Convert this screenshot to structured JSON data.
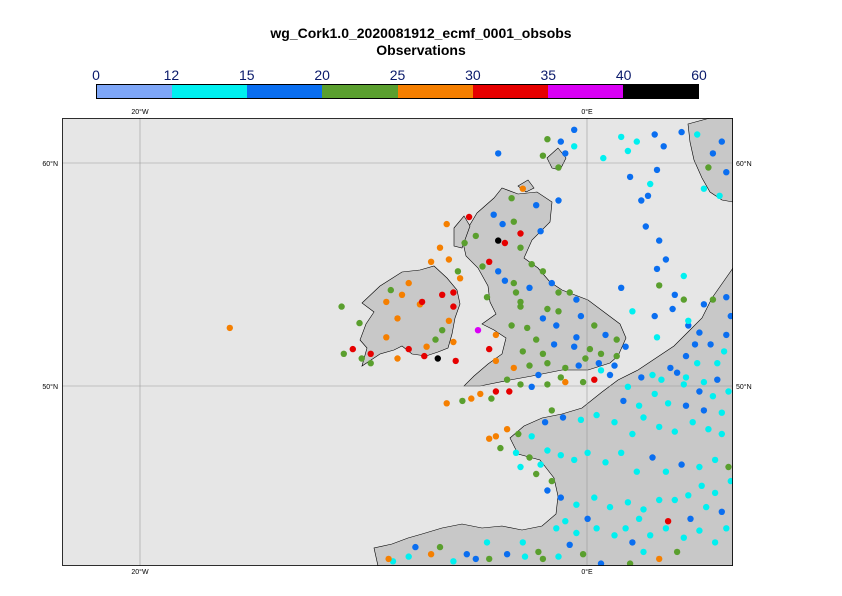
{
  "title": "wg_Cork1.0_2020081912_ecmf_0001_obsobs",
  "subtitle": "Observations",
  "legend": {
    "ticks": [
      "0",
      "12",
      "15",
      "20",
      "25",
      "30",
      "35",
      "40",
      "60"
    ],
    "colors": [
      "#7ea6f7",
      "#00f0f0",
      "#0a6ef0",
      "#5a9f2e",
      "#f57f00",
      "#e60000",
      "#d900f5",
      "#000000"
    ]
  },
  "axes": {
    "lon_labels": [
      "20°W",
      "0°E"
    ],
    "lat_labels": [
      "60°N",
      "50°N"
    ]
  },
  "map": {
    "ocean_color": "#e6e6e6",
    "land_color": "#c8c8c8",
    "lon_range": [
      -23.5,
      6.5
    ],
    "lat_range": [
      43.0,
      62.0
    ]
  },
  "chart_data": {
    "type": "scatter",
    "title": "wg_Cork1.0_2020081912_ecmf_0001_obsobs",
    "subtitle": "Observations",
    "x_axis": "longitude",
    "y_axis": "latitude",
    "xlim": [
      -23.5,
      6.5
    ],
    "ylim": [
      43.0,
      62.0
    ],
    "color_bins": [
      0,
      12,
      15,
      20,
      25,
      30,
      35,
      40,
      60
    ],
    "points": [
      [
        -16.0,
        53.1,
        28
      ],
      [
        -4.0,
        56.8,
        50
      ],
      [
        -6.7,
        51.8,
        50
      ],
      [
        -4.9,
        53.0,
        37
      ],
      [
        -11.0,
        54.0,
        22
      ],
      [
        -10.2,
        53.3,
        22
      ],
      [
        -10.5,
        52.2,
        32
      ],
      [
        -9.7,
        52.0,
        32
      ],
      [
        -8.5,
        53.5,
        28
      ],
      [
        -8.3,
        54.5,
        27
      ],
      [
        -9.0,
        54.2,
        27
      ],
      [
        -7.5,
        54.1,
        26
      ],
      [
        -7.4,
        54.2,
        32
      ],
      [
        -8.8,
        54.7,
        22
      ],
      [
        -8.0,
        55.0,
        26
      ],
      [
        -6.0,
        54.0,
        30
      ],
      [
        -6.5,
        53.0,
        24
      ],
      [
        -6.2,
        53.4,
        26
      ],
      [
        -6.8,
        52.6,
        23
      ],
      [
        -7.2,
        52.3,
        26
      ],
      [
        -8.5,
        51.8,
        26
      ],
      [
        -9.7,
        51.6,
        21
      ],
      [
        -10.1,
        51.8,
        22
      ],
      [
        -10.9,
        52.0,
        22
      ],
      [
        -9.0,
        52.7,
        27
      ],
      [
        -8.0,
        52.2,
        32
      ],
      [
        -7.3,
        51.9,
        31
      ],
      [
        -6.0,
        52.5,
        26
      ],
      [
        -5.9,
        51.7,
        34
      ],
      [
        -6.5,
        54.5,
        32
      ],
      [
        -6.0,
        54.6,
        34
      ],
      [
        -5.7,
        55.2,
        27
      ],
      [
        -6.2,
        56.0,
        26
      ],
      [
        -5.5,
        56.7,
        22
      ],
      [
        -5.0,
        57.0,
        23
      ],
      [
        -5.3,
        57.8,
        33
      ],
      [
        -6.3,
        57.5,
        28
      ],
      [
        -6.6,
        56.5,
        28
      ],
      [
        -7.0,
        55.9,
        27
      ],
      [
        -5.8,
        55.5,
        21
      ],
      [
        -4.4,
        55.9,
        32
      ],
      [
        -3.7,
        56.7,
        33
      ],
      [
        -3.0,
        56.5,
        21
      ],
      [
        -2.1,
        57.2,
        17
      ],
      [
        -3.3,
        57.6,
        21
      ],
      [
        -4.2,
        57.9,
        17
      ],
      [
        -3.4,
        58.6,
        21
      ],
      [
        -2.9,
        59.0,
        26
      ],
      [
        -1.3,
        59.9,
        22
      ],
      [
        -2.0,
        60.4,
        23
      ],
      [
        -1.2,
        61.0,
        15
      ],
      [
        -4.0,
        60.5,
        17
      ],
      [
        -2.3,
        58.3,
        17
      ],
      [
        -3.0,
        57.1,
        31
      ],
      [
        -2.5,
        55.8,
        22
      ],
      [
        -2.0,
        55.5,
        20
      ],
      [
        -1.6,
        55.0,
        17
      ],
      [
        -1.3,
        54.6,
        20
      ],
      [
        -0.5,
        54.3,
        17
      ],
      [
        -3.0,
        54.0,
        23
      ],
      [
        -2.6,
        54.8,
        17
      ],
      [
        -3.2,
        54.6,
        23
      ],
      [
        -4.5,
        54.4,
        22
      ],
      [
        -3.0,
        54.2,
        20
      ],
      [
        -2.0,
        53.5,
        17
      ],
      [
        -1.3,
        53.8,
        20
      ],
      [
        -0.3,
        53.6,
        17
      ],
      [
        0.3,
        53.2,
        21
      ],
      [
        0.8,
        52.8,
        17
      ],
      [
        1.3,
        52.6,
        22
      ],
      [
        1.7,
        52.3,
        17
      ],
      [
        1.3,
        51.9,
        21
      ],
      [
        0.5,
        51.6,
        17
      ],
      [
        -0.4,
        51.5,
        17
      ],
      [
        -1.0,
        51.4,
        20
      ],
      [
        -1.8,
        51.6,
        22
      ],
      [
        -2.6,
        51.5,
        22
      ],
      [
        -3.3,
        51.4,
        27
      ],
      [
        -4.1,
        51.7,
        28
      ],
      [
        -4.4,
        52.2,
        32
      ],
      [
        -4.1,
        52.8,
        29
      ],
      [
        -3.4,
        53.2,
        21
      ],
      [
        -2.7,
        53.1,
        22
      ],
      [
        -2.3,
        52.6,
        22
      ],
      [
        -1.5,
        52.4,
        17
      ],
      [
        -0.6,
        52.3,
        17
      ],
      [
        0.1,
        52.2,
        20
      ],
      [
        -0.1,
        51.8,
        21
      ],
      [
        -1.0,
        50.8,
        26
      ],
      [
        -0.2,
        50.8,
        20
      ],
      [
        0.3,
        50.9,
        31
      ],
      [
        1.0,
        51.1,
        17
      ],
      [
        -1.8,
        50.7,
        20
      ],
      [
        -2.5,
        50.6,
        17
      ],
      [
        -3.0,
        50.7,
        22
      ],
      [
        -3.5,
        50.4,
        31
      ],
      [
        -4.1,
        50.4,
        31
      ],
      [
        -4.8,
        50.3,
        28
      ],
      [
        -5.2,
        50.1,
        27
      ],
      [
        -5.6,
        50.0,
        22
      ],
      [
        -6.3,
        49.9,
        28
      ],
      [
        -4.3,
        50.1,
        22
      ],
      [
        -3.6,
        50.9,
        22
      ],
      [
        -2.2,
        51.1,
        17
      ],
      [
        -1.2,
        51.0,
        20
      ],
      [
        -0.5,
        52.7,
        17
      ],
      [
        -1.4,
        53.2,
        17
      ],
      [
        -2.0,
        52.0,
        21
      ],
      [
        -2.9,
        52.1,
        21
      ],
      [
        -1.8,
        53.9,
        22
      ],
      [
        -0.8,
        54.6,
        20
      ],
      [
        -4.0,
        55.5,
        17
      ],
      [
        -3.3,
        55.0,
        21
      ],
      [
        -4.7,
        55.7,
        20
      ],
      [
        -3.7,
        55.1,
        17
      ],
      [
        -1.8,
        61.1,
        23
      ],
      [
        -1.0,
        60.5,
        17
      ],
      [
        -0.6,
        60.8,
        13
      ],
      [
        1.5,
        61.2,
        13
      ],
      [
        2.2,
        61.0,
        13
      ],
      [
        3.0,
        61.3,
        15
      ],
      [
        3.4,
        60.8,
        16
      ],
      [
        4.2,
        61.4,
        17
      ],
      [
        4.9,
        61.3,
        13
      ],
      [
        5.6,
        60.5,
        16
      ],
      [
        6.0,
        61.0,
        18
      ],
      [
        5.4,
        59.9,
        22
      ],
      [
        6.2,
        59.7,
        16
      ],
      [
        5.2,
        59.0,
        14
      ],
      [
        5.9,
        58.7,
        13
      ],
      [
        1.8,
        60.6,
        13
      ],
      [
        0.7,
        60.3,
        14
      ],
      [
        1.9,
        59.5,
        17
      ],
      [
        2.4,
        58.5,
        17
      ],
      [
        2.6,
        57.4,
        18
      ],
      [
        3.2,
        56.8,
        16
      ],
      [
        3.5,
        56.0,
        18
      ],
      [
        4.3,
        55.3,
        13
      ],
      [
        3.1,
        55.6,
        16
      ],
      [
        4.3,
        54.3,
        24
      ],
      [
        5.2,
        54.1,
        17
      ],
      [
        5.6,
        54.3,
        23
      ],
      [
        6.2,
        54.4,
        17
      ],
      [
        6.4,
        53.6,
        18
      ],
      [
        4.5,
        53.2,
        17
      ],
      [
        3.0,
        53.6,
        18
      ],
      [
        3.1,
        52.7,
        14
      ],
      [
        4.5,
        53.4,
        14
      ],
      [
        5.0,
        52.9,
        17
      ],
      [
        4.8,
        52.4,
        16
      ],
      [
        5.5,
        52.4,
        17
      ],
      [
        6.2,
        52.8,
        17
      ],
      [
        6.1,
        52.1,
        14
      ],
      [
        5.8,
        51.6,
        13
      ],
      [
        4.9,
        51.6,
        13
      ],
      [
        4.4,
        51.9,
        17
      ],
      [
        3.7,
        51.4,
        17
      ],
      [
        4.0,
        51.2,
        16
      ],
      [
        4.4,
        51.0,
        14
      ],
      [
        5.2,
        50.8,
        13
      ],
      [
        5.8,
        50.9,
        17
      ],
      [
        6.3,
        50.4,
        13
      ],
      [
        5.6,
        50.2,
        14
      ],
      [
        5.0,
        50.4,
        15
      ],
      [
        4.3,
        50.7,
        13
      ],
      [
        3.3,
        50.9,
        13
      ],
      [
        2.9,
        51.1,
        13
      ],
      [
        2.4,
        51.0,
        17
      ],
      [
        1.8,
        50.6,
        14
      ],
      [
        1.6,
        50.0,
        16
      ],
      [
        2.3,
        49.8,
        13
      ],
      [
        3.0,
        50.3,
        14
      ],
      [
        3.6,
        49.9,
        13
      ],
      [
        4.4,
        49.8,
        15
      ],
      [
        5.2,
        49.6,
        16
      ],
      [
        6.0,
        49.5,
        14
      ],
      [
        6.5,
        49.7,
        13
      ],
      [
        6.0,
        48.6,
        13
      ],
      [
        5.4,
        48.8,
        14
      ],
      [
        4.7,
        49.1,
        14
      ],
      [
        3.9,
        48.7,
        13
      ],
      [
        3.2,
        48.9,
        14
      ],
      [
        2.5,
        49.3,
        13
      ],
      [
        2.0,
        48.6,
        13
      ],
      [
        1.2,
        49.1,
        14
      ],
      [
        0.4,
        49.4,
        13
      ],
      [
        -0.3,
        49.2,
        13
      ],
      [
        -1.1,
        49.3,
        17
      ],
      [
        -1.6,
        49.6,
        22
      ],
      [
        -1.9,
        49.1,
        16
      ],
      [
        -2.5,
        48.5,
        13
      ],
      [
        -3.1,
        48.6,
        21
      ],
      [
        -3.6,
        48.8,
        27
      ],
      [
        -4.1,
        48.5,
        28
      ],
      [
        -4.4,
        48.4,
        28
      ],
      [
        -3.9,
        48.0,
        22
      ],
      [
        -3.2,
        47.8,
        13
      ],
      [
        -2.6,
        47.6,
        22
      ],
      [
        -2.1,
        47.3,
        13
      ],
      [
        -1.8,
        47.9,
        14
      ],
      [
        -1.2,
        47.7,
        13
      ],
      [
        -0.6,
        47.5,
        13
      ],
      [
        0.0,
        47.8,
        14
      ],
      [
        0.8,
        47.4,
        13
      ],
      [
        1.5,
        47.8,
        14
      ],
      [
        2.2,
        47.0,
        13
      ],
      [
        2.9,
        47.6,
        16
      ],
      [
        3.5,
        47.0,
        13
      ],
      [
        4.2,
        47.3,
        16
      ],
      [
        5.0,
        47.2,
        14
      ],
      [
        5.7,
        47.5,
        13
      ],
      [
        6.3,
        47.2,
        23
      ],
      [
        6.4,
        46.6,
        13
      ],
      [
        5.7,
        46.1,
        14
      ],
      [
        5.1,
        46.4,
        13
      ],
      [
        4.5,
        46.0,
        14
      ],
      [
        3.9,
        45.8,
        13
      ],
      [
        3.2,
        45.8,
        14
      ],
      [
        2.5,
        45.4,
        13
      ],
      [
        1.8,
        45.7,
        13
      ],
      [
        1.0,
        45.5,
        14
      ],
      [
        0.3,
        45.9,
        14
      ],
      [
        -0.5,
        45.6,
        13
      ],
      [
        -1.2,
        45.9,
        16
      ],
      [
        -1.6,
        46.6,
        22
      ],
      [
        -2.3,
        46.9,
        23
      ],
      [
        -1.8,
        46.2,
        16
      ],
      [
        -1.0,
        44.9,
        13
      ],
      [
        -0.5,
        44.4,
        14
      ],
      [
        0.4,
        44.6,
        13
      ],
      [
        1.2,
        44.3,
        14
      ],
      [
        2.0,
        44.0,
        15
      ],
      [
        2.8,
        44.3,
        13
      ],
      [
        3.5,
        44.6,
        14
      ],
      [
        4.3,
        44.2,
        13
      ],
      [
        5.0,
        44.5,
        14
      ],
      [
        5.7,
        44.0,
        13
      ],
      [
        6.2,
        44.6,
        13
      ],
      [
        4.6,
        45.0,
        16
      ],
      [
        5.3,
        45.5,
        14
      ],
      [
        6.0,
        45.3,
        15
      ],
      [
        3.6,
        44.9,
        31
      ],
      [
        2.3,
        45.0,
        13
      ],
      [
        1.7,
        44.6,
        13
      ],
      [
        4.0,
        43.6,
        23
      ],
      [
        3.2,
        43.3,
        29
      ],
      [
        2.5,
        43.6,
        13
      ],
      [
        1.9,
        43.1,
        23
      ],
      [
        -1.3,
        43.4,
        14
      ],
      [
        -2.0,
        43.3,
        20
      ],
      [
        -2.8,
        43.4,
        13
      ],
      [
        -3.6,
        43.5,
        17
      ],
      [
        -4.4,
        43.3,
        22
      ],
      [
        -5.4,
        43.5,
        17
      ],
      [
        -6.0,
        43.2,
        14
      ],
      [
        -7.0,
        43.5,
        28
      ],
      [
        -8.0,
        43.4,
        14
      ],
      [
        -8.7,
        43.2,
        13
      ],
      [
        -9.2,
        43.0,
        28
      ],
      [
        -8.9,
        43.3,
        27
      ],
      [
        -0.8,
        43.9,
        17
      ],
      [
        -0.2,
        43.5,
        22
      ],
      [
        0.6,
        43.1,
        16
      ],
      [
        -1.4,
        44.6,
        13
      ],
      [
        0.0,
        45.0,
        16
      ],
      [
        -3.0,
        47.2,
        13
      ],
      [
        -2.2,
        43.6,
        22
      ],
      [
        -5.0,
        43.3,
        16
      ],
      [
        -6.6,
        43.8,
        24
      ],
      [
        -7.7,
        43.8,
        16
      ],
      [
        -4.5,
        44.0,
        13
      ],
      [
        -2.9,
        44.0,
        13
      ],
      [
        -0.6,
        61.5,
        17
      ],
      [
        -3.8,
        57.5,
        17
      ],
      [
        -1.3,
        58.5,
        17
      ],
      [
        3.1,
        59.8,
        17
      ],
      [
        2.8,
        59.2,
        14
      ],
      [
        2.7,
        58.7,
        16
      ],
      [
        3.2,
        54.9,
        21
      ],
      [
        3.9,
        54.5,
        17
      ],
      [
        3.8,
        53.9,
        16
      ],
      [
        2.0,
        53.8,
        13
      ],
      [
        1.5,
        54.8,
        17
      ],
      [
        0.6,
        52.0,
        20
      ],
      [
        1.2,
        51.5,
        17
      ],
      [
        0.6,
        51.3,
        13
      ]
    ]
  }
}
